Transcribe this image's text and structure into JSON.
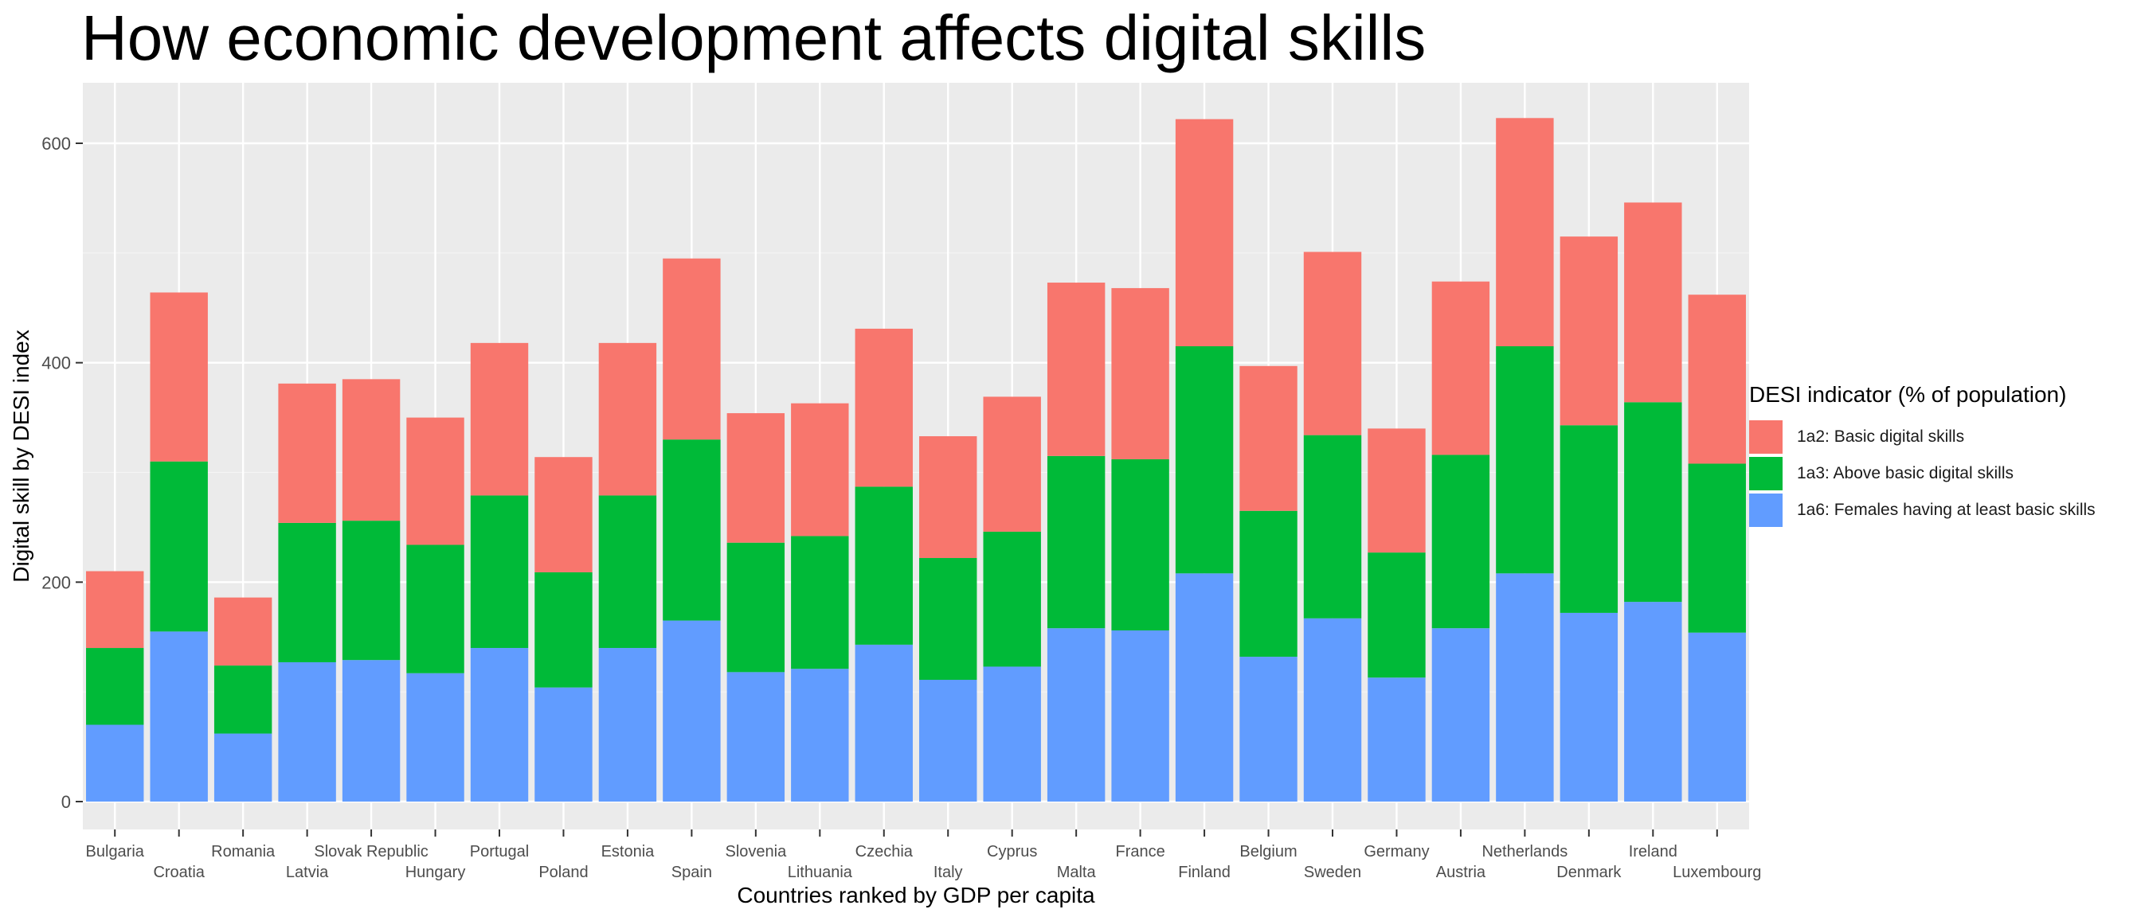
{
  "chart_data": {
    "type": "bar",
    "stacked": true,
    "title": "How economic development affects digital skills",
    "xlabel": "Countries ranked by GDP per capita",
    "ylabel": "Digital skill by DESI index",
    "ylim": [
      0,
      650
    ],
    "yticks": [
      0,
      200,
      400,
      600
    ],
    "grid": true,
    "legend_position": "right",
    "legend_title": "DESI indicator (% of population)",
    "categories": [
      "Bulgaria",
      "Croatia",
      "Romania",
      "Latvia",
      "Slovak Republic",
      "Hungary",
      "Portugal",
      "Poland",
      "Estonia",
      "Spain",
      "Slovenia",
      "Lithuania",
      "Czechia",
      "Italy",
      "Cyprus",
      "Malta",
      "France",
      "Finland",
      "Belgium",
      "Sweden",
      "Germany",
      "Austria",
      "Netherlands",
      "Denmark",
      "Ireland",
      "Luxembourg"
    ],
    "series": [
      {
        "name": "1a6: Females having at least basic skills",
        "color": "#619CFF",
        "values": [
          70,
          155,
          62,
          127,
          129,
          117,
          140,
          104,
          140,
          165,
          118,
          121,
          143,
          111,
          123,
          158,
          156,
          208,
          132,
          167,
          113,
          158,
          208,
          172,
          182,
          154
        ]
      },
      {
        "name": "1a3: Above basic digital skills",
        "color": "#00BA38",
        "values": [
          70,
          155,
          62,
          127,
          127,
          117,
          139,
          105,
          139,
          165,
          118,
          121,
          144,
          111,
          123,
          157,
          156,
          207,
          133,
          167,
          114,
          158,
          207,
          171,
          182,
          154
        ]
      },
      {
        "name": "1a2: Basic digital skills",
        "color": "#F8766D",
        "values": [
          70,
          154,
          62,
          127,
          129,
          116,
          139,
          105,
          139,
          165,
          118,
          121,
          144,
          111,
          123,
          158,
          156,
          207,
          132,
          167,
          113,
          158,
          208,
          172,
          182,
          154
        ]
      }
    ],
    "legend_order": [
      2,
      1,
      0
    ]
  },
  "colors": {
    "panel": "#EBEBEB",
    "grid_major": "#FFFFFF",
    "grid_minor": "#F5F5F5",
    "axis_text": "#4D4D4D"
  }
}
